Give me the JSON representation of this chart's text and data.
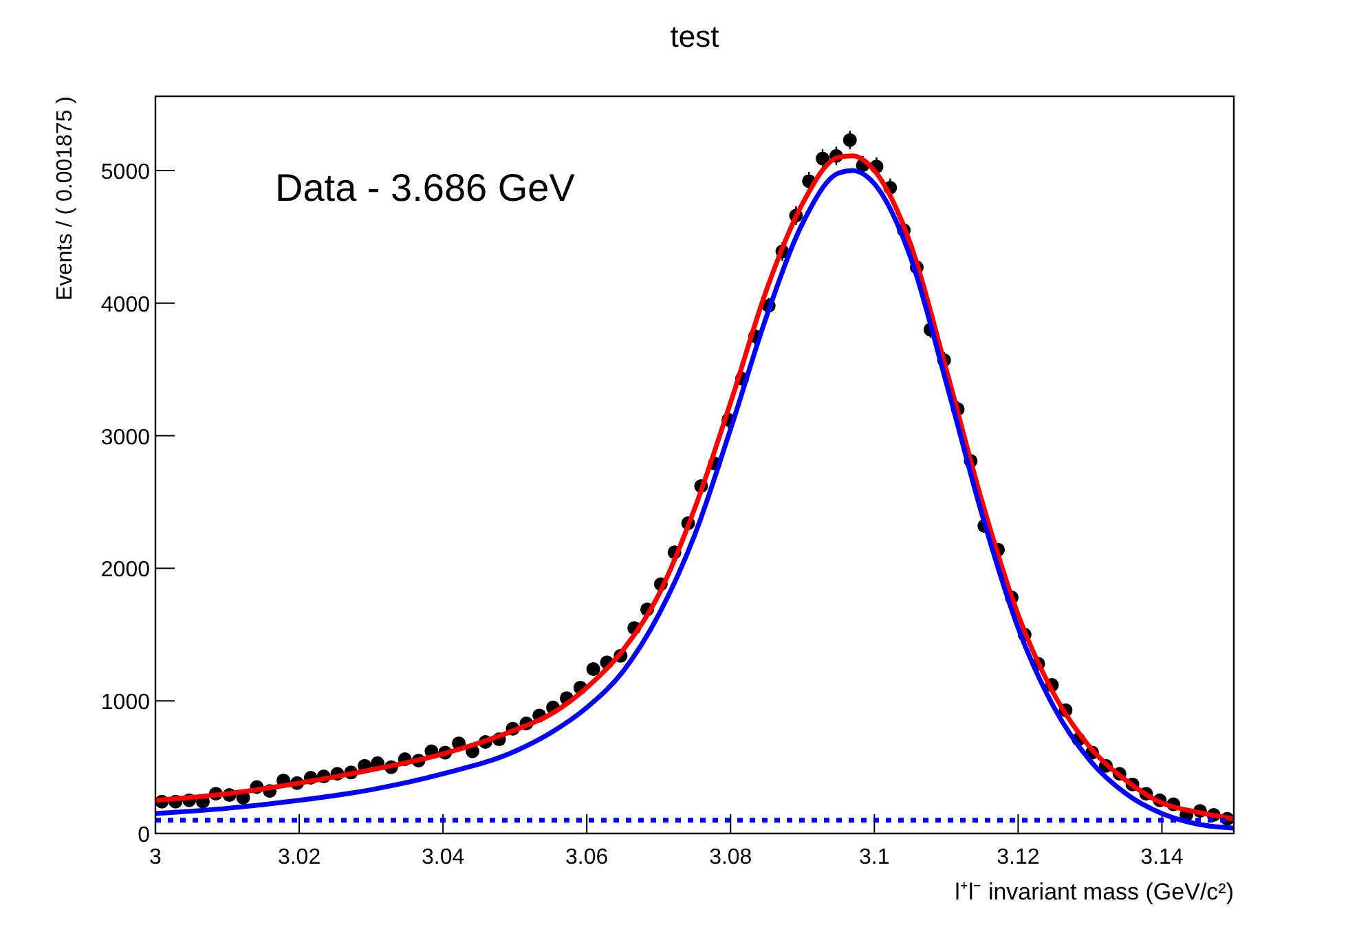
{
  "chart_data": {
    "type": "scatter",
    "title": "test",
    "xlabel": "l⁺l⁻ invariant mass (GeV/c²)",
    "ylabel": "Events / ( 0.001875 )",
    "annotations": [
      "Data - 3.686 GeV"
    ],
    "xlim": [
      3.0,
      3.15
    ],
    "ylim": [
      0,
      5560
    ],
    "xticks": [
      {
        "value": 3.0,
        "label": "3"
      },
      3.02,
      3.04,
      3.06,
      3.08,
      {
        "value": 3.1,
        "label": "3.1"
      },
      3.12,
      3.14
    ],
    "yticks": [
      0,
      1000,
      2000,
      3000,
      4000,
      5000
    ],
    "grid": false,
    "series": [
      {
        "color": "#000000",
        "marker": "circle",
        "x": [
          3.0009,
          3.0028,
          3.0047,
          3.0066,
          3.0084,
          3.0103,
          3.0122,
          3.0141,
          3.0159,
          3.0178,
          3.0197,
          3.0216,
          3.0234,
          3.0253,
          3.0272,
          3.0291,
          3.0309,
          3.0328,
          3.0347,
          3.0366,
          3.0384,
          3.0403,
          3.0422,
          3.0441,
          3.0459,
          3.0478,
          3.0497,
          3.0516,
          3.0534,
          3.0553,
          3.0572,
          3.0591,
          3.0609,
          3.0628,
          3.0647,
          3.0666,
          3.0684,
          3.0703,
          3.0722,
          3.0741,
          3.0759,
          3.0778,
          3.0797,
          3.0816,
          3.0834,
          3.0853,
          3.0872,
          3.0891,
          3.0909,
          3.0928,
          3.0947,
          3.0966,
          3.0984,
          3.1003,
          3.1022,
          3.1041,
          3.1059,
          3.1078,
          3.1097,
          3.1116,
          3.1134,
          3.1153,
          3.1172,
          3.1191,
          3.1209,
          3.1228,
          3.1247,
          3.1266,
          3.1284,
          3.1303,
          3.1322,
          3.1341,
          3.1359,
          3.1378,
          3.1397,
          3.1416,
          3.1434,
          3.1453,
          3.1472,
          3.1491
        ],
        "values": [
          240,
          240,
          250,
          240,
          300,
          290,
          270,
          350,
          320,
          400,
          380,
          420,
          430,
          450,
          460,
          510,
          530,
          500,
          560,
          550,
          620,
          610,
          680,
          620,
          690,
          710,
          790,
          830,
          890,
          950,
          1020,
          1100,
          1240,
          1290,
          1340,
          1550,
          1690,
          1880,
          2120,
          2340,
          2620,
          2790,
          3120,
          3430,
          3750,
          3980,
          4390,
          4660,
          4920,
          5090,
          5110,
          5230,
          5040,
          5030,
          4870,
          4550,
          4270,
          3800,
          3570,
          3200,
          2810,
          2320,
          2140,
          1780,
          1500,
          1280,
          1120,
          930,
          710,
          610,
          510,
          450,
          370,
          300,
          250,
          220,
          140,
          170,
          140,
          110
        ],
        "errors": [
          20,
          20,
          20,
          20,
          20,
          20,
          20,
          20,
          20,
          20,
          20,
          30,
          30,
          30,
          30,
          30,
          30,
          30,
          30,
          30,
          30,
          30,
          30,
          30,
          30,
          30,
          30,
          30,
          30,
          30,
          40,
          40,
          40,
          40,
          40,
          40,
          40,
          40,
          50,
          50,
          50,
          50,
          60,
          60,
          60,
          60,
          70,
          70,
          70,
          70,
          70,
          70,
          70,
          70,
          70,
          70,
          70,
          60,
          60,
          60,
          50,
          50,
          50,
          40,
          40,
          40,
          40,
          30,
          30,
          30,
          30,
          30,
          20,
          20,
          20,
          20,
          20,
          20,
          20,
          20
        ]
      },
      {
        "type": "line",
        "color": "#ff0000",
        "line_style": "solid",
        "x": [
          3.0,
          3.01,
          3.02,
          3.03,
          3.04,
          3.05,
          3.055,
          3.06,
          3.065,
          3.07,
          3.075,
          3.08,
          3.085,
          3.09,
          3.095,
          3.097,
          3.1,
          3.105,
          3.11,
          3.115,
          3.12,
          3.125,
          3.13,
          3.135,
          3.14,
          3.145,
          3.15
        ],
        "values": [
          250,
          300,
          380,
          480,
          600,
          780,
          900,
          1100,
          1380,
          1800,
          2450,
          3250,
          4100,
          4750,
          5100,
          5110,
          5000,
          4450,
          3500,
          2500,
          1650,
          1050,
          650,
          400,
          230,
          160,
          110
        ]
      },
      {
        "type": "line",
        "color": "#0000ff",
        "line_style": "solid",
        "x": [
          3.0,
          3.01,
          3.02,
          3.03,
          3.04,
          3.05,
          3.055,
          3.06,
          3.065,
          3.07,
          3.075,
          3.08,
          3.085,
          3.09,
          3.095,
          3.097,
          3.1,
          3.105,
          3.11,
          3.115,
          3.12,
          3.125,
          3.13,
          3.135,
          3.14,
          3.145,
          3.15
        ],
        "values": [
          150,
          190,
          250,
          330,
          450,
          620,
          760,
          950,
          1220,
          1650,
          2250,
          3050,
          3900,
          4600,
          4980,
          5000,
          4900,
          4350,
          3400,
          2400,
          1550,
          950,
          550,
          300,
          150,
          70,
          40
        ]
      },
      {
        "type": "line",
        "color": "#0000ff",
        "line_style": "dotted",
        "x": [
          3.0,
          3.15
        ],
        "values": [
          100,
          100
        ]
      }
    ]
  }
}
